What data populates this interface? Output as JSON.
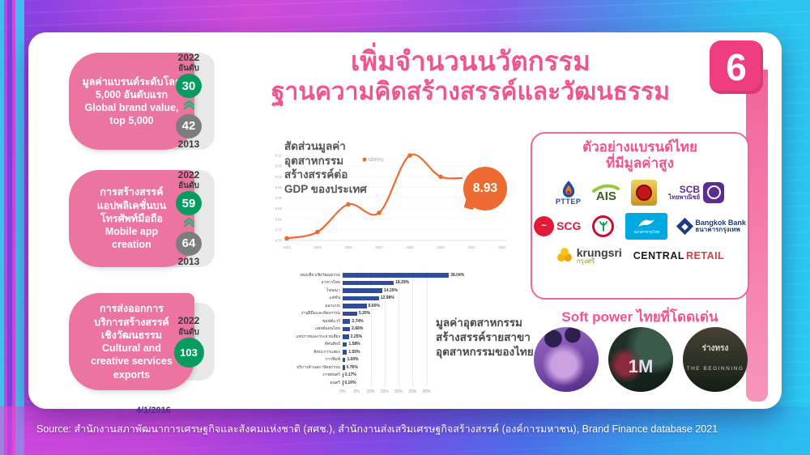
{
  "slide_number": "6",
  "title": {
    "line1": "เพิ่มจำนวนนวัตกรรม",
    "line2": "ฐานความคิดสร้างสรรค์และวัฒนธรรม"
  },
  "rank_cards": [
    {
      "lines": [
        "มูลค่าแบรนด์ระดับโลก",
        "5,000 อันดับแรก",
        "Global brand value,",
        "top 5,000"
      ],
      "year_top": "2022",
      "rank_label": "อันดับ",
      "current_rank": "30",
      "previous_rank": "42",
      "year_bottom": "2013"
    },
    {
      "lines": [
        "การสร้างสรรค์",
        "แอปพลิเคชั่นบน",
        "โทรศัพท์มือถือ",
        "Mobile app",
        "creation"
      ],
      "year_top": "2022",
      "rank_label": "อันดับ",
      "current_rank": "59",
      "previous_rank": "64",
      "year_bottom": "2013"
    },
    {
      "lines": [
        "การส่งออกการ",
        "บริการสร้างสรรค์",
        "เชิงวัฒนธรรม",
        "Cultural and",
        "creative services",
        "exports"
      ],
      "year_top": "2022",
      "rank_label": "อันดับ",
      "current_rank": "103",
      "previous_rank": null,
      "year_bottom": null
    }
  ],
  "chart_data": [
    {
      "type": "line",
      "title": "สัดส่วนมูลค่าอุตสาหกรรมสร้างสรรค์ต่อ GDP ของประเทศ",
      "title_lines": [
        "สัดส่วนมูลค่า",
        "อุตสาหกรรม",
        "สร้างสรรค์ต่อ",
        "GDP ของประเทศ"
      ],
      "legend": "GDP(%)",
      "x": [
        "2554",
        "2555",
        "2556",
        "2557",
        "2558",
        "2559",
        "2560",
        "2561"
      ],
      "values": [
        8.71,
        8.74,
        8.87,
        8.83,
        9.1,
        9.0,
        8.99,
        8.93
      ],
      "yticks": [
        "8.70",
        "8.75",
        "8.80",
        "8.85",
        "8.90",
        "8.95",
        "9.00",
        "9.05",
        "9.10"
      ],
      "ylim": [
        8.7,
        9.1
      ],
      "callout": "8.93",
      "color": "#ED6B30",
      "legend_position": "top"
    },
    {
      "type": "bar",
      "orientation": "horizontal",
      "caption_lines": [
        "มูลค่าอุตสาหกรรม",
        "สร้างสรรค์รายสาขา",
        "อุตสาหกรรมของไทย"
      ],
      "categories": [
        "ท่องเที่ยวเชิงวัฒนธรรม",
        "อาหารไทย",
        "โฆษณา",
        "แฟชั่น",
        "ออกแบบ",
        "งานฝีมือและหัตถกรรม",
        "ซอฟต์แวร์",
        "แพทย์แผนไทย",
        "แพร่ภาพและกระจายเสียง",
        "ทัศนศิลป์",
        "ศิลปะการแสดง",
        "การพิมพ์",
        "บริการด้านสถาปัตยกรรม",
        "ภาพยนตร์",
        "ดนตรี"
      ],
      "values": [
        38.04,
        18.29,
        14.2,
        12.98,
        8.6,
        5.2,
        2.74,
        2.66,
        2.25,
        1.58,
        1.55,
        1.0,
        0.76,
        0.17,
        0.1
      ],
      "value_labels": [
        "38.04%",
        "18.29%",
        "14.20%",
        "12.98%",
        "8.60%",
        "5.20%",
        "2.74%",
        "2.66%",
        "2.25%",
        "1.58%",
        "1.55%",
        "1.00%",
        "0.76%",
        "0.17%",
        "0.10%"
      ],
      "xticks": [
        "0%",
        "5%",
        "10%",
        "15%",
        "20%",
        "25%",
        "30%"
      ],
      "xtick_values": [
        0,
        5,
        10,
        15,
        20,
        25,
        30
      ],
      "xlim": [
        0,
        40
      ],
      "color": "#2E4D9E"
    }
  ],
  "brands_panel": {
    "title_line1": "ตัวอย่างแบรนด์ไทย",
    "title_line2": "ที่มีมูลค่าสูง",
    "pttep": "PTTEP",
    "ais": "AIS",
    "scb_line1": "SCB",
    "scb_line2": "ไทยพาณิชย์",
    "scg": "SCG",
    "krungthai": "ธนาคารกรุงไทย",
    "bangkok_bank_line1": "Bangkok Bank",
    "bangkok_bank_line2": "ธนาคารกรุงเทพ",
    "krungsri_line1": "krungsri",
    "krungsri_line2": "กรุงศรี",
    "central": "CENTRAL",
    "retail": "RETAIL"
  },
  "soft_power": {
    "title": "Soft power ไทยที่โดดเด่น",
    "items": [
      {
        "label": ""
      },
      {
        "label": "1M"
      },
      {
        "label_line1": "ร่างทรง",
        "label_line2": "THE BEGINNING"
      }
    ]
  },
  "footer": {
    "date": "4/1/2016",
    "source": "Source: สำนักงานสภาพัฒนาการเศรษฐกิจและสังคมแห่งชาติ (สศช.), สำนักงานส่งเสริมเศรษฐกิจสร้างสรรค์ (องค์การมหาชน), Brand Finance database 2021"
  },
  "colors": {
    "accent_pink": "#F0558F",
    "card_pink": "#EC74A0",
    "badge_pink": "#EE3D80",
    "rank_green": "#069C60",
    "rank_gray": "#7D7D7D",
    "line_orange": "#ED6B30",
    "bar_blue": "#2E4D9E",
    "panel_border_pink": "#F0649C"
  }
}
